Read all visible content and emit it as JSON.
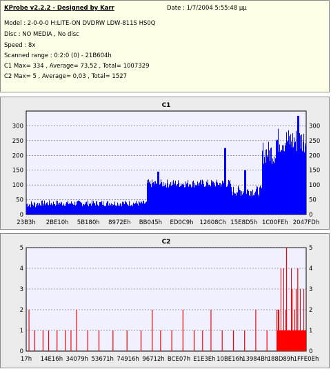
{
  "info": {
    "title": "KProbe v2.2.2 - Designed by Karr",
    "date": "Date : 1/7/2004 5:55:48 μμ",
    "drive": "Model : 2-0-0-0 H:LITE-ON DVDRW LDW-811S   HS0Q",
    "disc": "Disc : NO MEDIA , No disc",
    "speed": "Speed : 8x",
    "range": "Scanned range : 0:2:0 (0) - 21B604h",
    "c1_stats": "C1 Max= 334 , Average= 73,52 , Total= 1007329",
    "c2_stats": "C2 Max= 5 , Average= 0,03 , Total= 1527"
  },
  "colors": {
    "plot_bg": "#f0f0ff",
    "c1_bar": "#0000ff",
    "c2_bar": "#ff0000",
    "panel_bg": "#ebebeb",
    "info_bg": "#fffee6"
  },
  "chart_data": [
    {
      "type": "bar",
      "title": "C1",
      "x_tick_labels": [
        "23B3h",
        "2BE10h",
        "5B180h",
        "8972Eh",
        "BB045h",
        "ED0C9h",
        "12608Ch",
        "15E8D5h",
        "1C00FEh",
        "2047FDh"
      ],
      "ylim": [
        0,
        350
      ],
      "y_ticks": [
        0,
        50,
        100,
        150,
        200,
        250,
        300
      ],
      "grid": true,
      "segments": [
        {
          "from": 0.0,
          "to": 0.04,
          "base": 35,
          "jitter": 12
        },
        {
          "from": 0.04,
          "to": 0.43,
          "base": 38,
          "jitter": 10
        },
        {
          "from": 0.43,
          "to": 0.73,
          "base": 105,
          "jitter": 14
        },
        {
          "from": 0.73,
          "to": 0.84,
          "base": 80,
          "jitter": 18
        },
        {
          "from": 0.84,
          "to": 0.89,
          "base": 210,
          "jitter": 40
        },
        {
          "from": 0.89,
          "to": 1.0,
          "base": 250,
          "jitter": 45
        }
      ],
      "peaks": [
        {
          "at": 0.47,
          "value": 145
        },
        {
          "at": 0.71,
          "value": 225
        },
        {
          "at": 0.78,
          "value": 150
        },
        {
          "at": 0.97,
          "value": 334
        }
      ]
    },
    {
      "type": "bar",
      "title": "C2",
      "x_tick_labels": [
        "17h",
        "14E16h",
        "34079h",
        "53671h",
        "74916h",
        "96712h",
        "BCE07h",
        "E1E3Eh",
        "10BE16h",
        "13984Bh",
        "188D89h",
        "1FFE0Eh"
      ],
      "ylim": [
        0,
        5
      ],
      "y_ticks": [
        0,
        1,
        2,
        3,
        4,
        5
      ],
      "grid": true,
      "events": [
        {
          "at": 0.01,
          "value": 2
        },
        {
          "at": 0.03,
          "value": 1
        },
        {
          "at": 0.06,
          "value": 1
        },
        {
          "at": 0.08,
          "value": 1
        },
        {
          "at": 0.11,
          "value": 1
        },
        {
          "at": 0.14,
          "value": 1
        },
        {
          "at": 0.16,
          "value": 1
        },
        {
          "at": 0.18,
          "value": 2
        },
        {
          "at": 0.22,
          "value": 1
        },
        {
          "at": 0.26,
          "value": 1
        },
        {
          "at": 0.31,
          "value": 1
        },
        {
          "at": 0.36,
          "value": 1
        },
        {
          "at": 0.41,
          "value": 1
        },
        {
          "at": 0.45,
          "value": 2
        },
        {
          "at": 0.48,
          "value": 1
        },
        {
          "at": 0.52,
          "value": 1
        },
        {
          "at": 0.56,
          "value": 2
        },
        {
          "at": 0.6,
          "value": 1
        },
        {
          "at": 0.63,
          "value": 1
        },
        {
          "at": 0.66,
          "value": 2
        },
        {
          "at": 0.7,
          "value": 1
        },
        {
          "at": 0.74,
          "value": 1
        },
        {
          "at": 0.78,
          "value": 1
        },
        {
          "at": 0.82,
          "value": 2
        },
        {
          "at": 0.86,
          "value": 1
        },
        {
          "at": 0.9,
          "value": 2
        },
        {
          "at": 0.93,
          "value": 5
        },
        {
          "at": 0.95,
          "value": 3
        },
        {
          "at": 0.97,
          "value": 4
        }
      ],
      "dense_region": {
        "from": 0.895,
        "to": 1.0,
        "base": 1,
        "max": 4
      }
    }
  ]
}
